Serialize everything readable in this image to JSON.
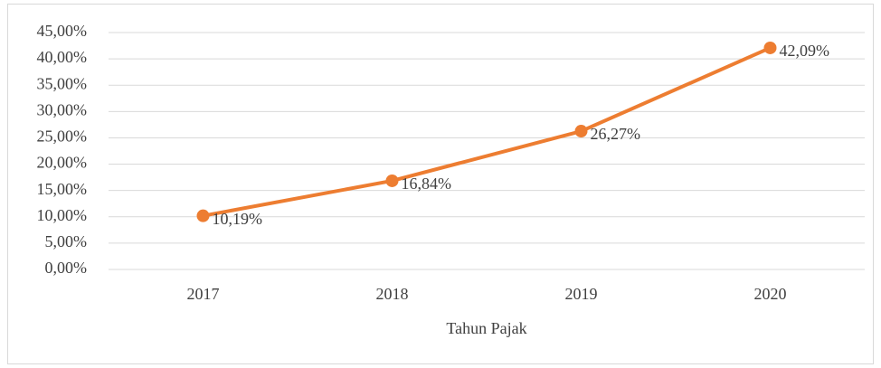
{
  "chart_data": {
    "type": "line",
    "x_label": "Tahun Pajak",
    "categories": [
      "2017",
      "2018",
      "2019",
      "2020"
    ],
    "series": [
      {
        "name": "Tahun Pajak",
        "color": "#ed7d31",
        "values": [
          10.19,
          16.84,
          26.27,
          42.09
        ],
        "value_labels": [
          "10,19%",
          "16,84%",
          "26,27%",
          "42,09%"
        ]
      }
    ],
    "ylim": [
      0,
      45
    ],
    "yticks": [
      {
        "value": 0,
        "label": "0,00%"
      },
      {
        "value": 5,
        "label": "5,00%"
      },
      {
        "value": 10,
        "label": "10,00%"
      },
      {
        "value": 15,
        "label": "15,00%"
      },
      {
        "value": 20,
        "label": "20,00%"
      },
      {
        "value": 25,
        "label": "25,00%"
      },
      {
        "value": 30,
        "label": "30,00%"
      },
      {
        "value": 35,
        "label": "35,00%"
      },
      {
        "value": 40,
        "label": "40,00%"
      },
      {
        "value": 45,
        "label": "45,00%"
      }
    ],
    "grid": true
  }
}
